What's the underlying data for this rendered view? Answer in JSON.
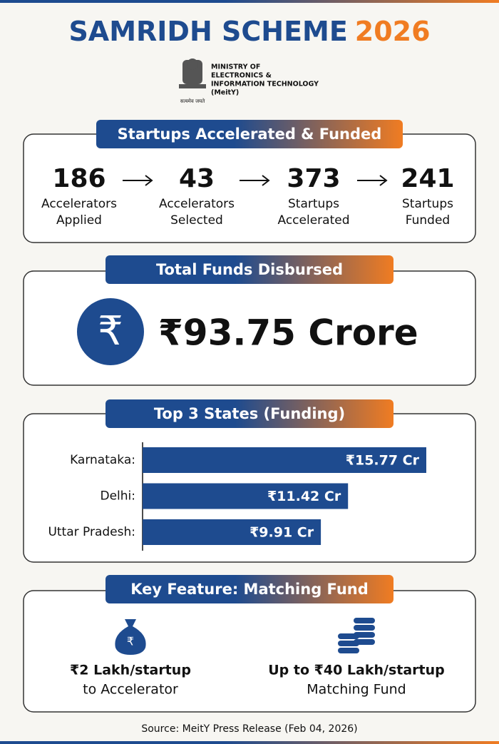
{
  "header": {
    "title": "SAMRIDH SCHEME",
    "year": "2026",
    "ministry": [
      "MINISTRY OF",
      "ELECTRONICS &",
      "INFORMATION TECHNOLOGY",
      "(MeitY)"
    ],
    "motto": "सत्यमेव जयते"
  },
  "funnel": {
    "title": "Startups Accelerated & Funded",
    "steps": [
      {
        "value": 186,
        "label": [
          "Accelerators",
          "Applied"
        ]
      },
      {
        "value": 43,
        "label": [
          "Accelerators",
          "Selected"
        ]
      },
      {
        "value": 373,
        "label": [
          "Startups",
          "Accelerated"
        ]
      },
      {
        "value": 241,
        "label": [
          "Startups",
          "Funded"
        ]
      }
    ]
  },
  "funds": {
    "title": "Total Funds Disbursed",
    "amount": "₹93.75 Crore"
  },
  "chart_data": {
    "type": "bar",
    "orientation": "horizontal",
    "title": "Top 3 States (Funding)",
    "categories": [
      "Karnataka:",
      "Delhi:",
      "Uttar Pradesh:"
    ],
    "values": [
      15.77,
      11.42,
      9.91
    ],
    "value_labels": [
      "₹15.77 Cr",
      "₹11.42 Cr",
      "₹9.91 Cr"
    ],
    "color": "#1e4b8f"
  },
  "features": {
    "title": "Key Feature: Matching Fund",
    "items": [
      {
        "title": "₹2 Lakh/startup",
        "subtitle": "to Accelerator"
      },
      {
        "title": "Up to ₹40 Lakh/startup",
        "subtitle": "Matching Fund"
      }
    ]
  },
  "source": "Source: MeitY Press Release (Feb 04, 2026)"
}
